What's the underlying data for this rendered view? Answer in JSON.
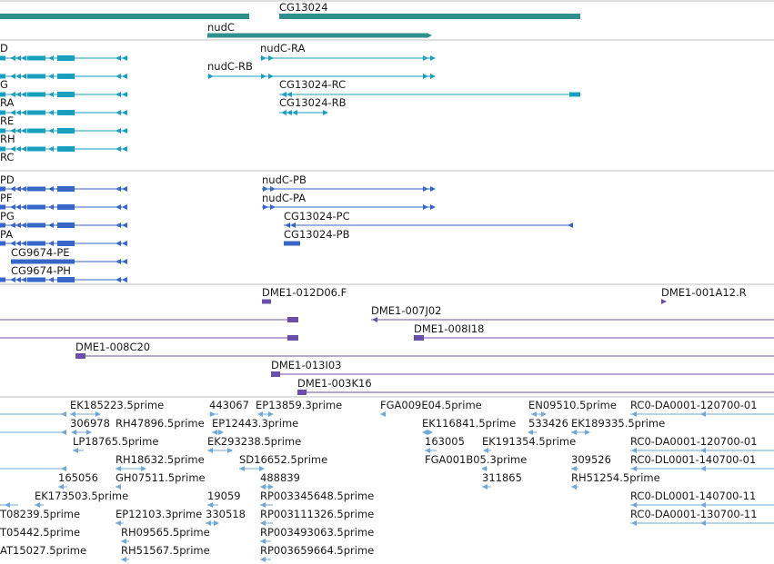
{
  "colors": {
    "gene": "#2f8f8c",
    "rna": "#1a9fc1",
    "protein": "#3566c8",
    "clone": "#6a4fa8",
    "est": "#6fa8d6",
    "divider": "#bfbfbf",
    "text": "#1a1a1a"
  },
  "gene_track": {
    "labels": [
      "CG13024",
      "nudC"
    ]
  },
  "rna_track": {
    "labels": [
      "D",
      "nudC-RA",
      "nudC-RB",
      "G",
      "CG13024-RC",
      "RA",
      "CG13024-RB",
      "RE",
      "RH",
      "RC"
    ]
  },
  "protein_track": {
    "labels": [
      "PD",
      "nudC-PB",
      "PF",
      "nudC-PA",
      "PG",
      "CG13024-PC",
      "PA",
      "CG13024-PB",
      "CG9674-PE",
      "CG9674-PH"
    ]
  },
  "clone_track": {
    "labels": [
      "DME1-012D06.F",
      "DME1-001A12.R",
      "DME1-007J02",
      "DME1-008I18",
      "DME1-008C20",
      "DME1-013I03",
      "DME1-003K16"
    ]
  },
  "est_track": {
    "labels": [
      "EK185223.5prime",
      "443067",
      "EP13859.3prime",
      "FGA009E04.5prime",
      "EN09510.5prime",
      "RC0-DA0001-120700-01",
      "306978",
      "RH47896.5prime",
      "EP12443.3prime",
      "EK116841.5prime",
      "533426",
      "EK189335.5prime",
      "LP18765.5prime",
      "EK293238.5prime",
      "163005",
      "EK191354.5prime",
      "RC0-DA0001-120700-01",
      "RH18632.5prime",
      "SD16652.5prime",
      "FGA001B05.3prime",
      "309526",
      "RC0-DL0001-140700-01",
      "165056",
      "GH07511.5prime",
      "488839",
      "311865",
      "RH51254.5prime",
      "EK173503.5prime",
      "19059",
      "RP003345648.5prime",
      "RC0-DL0001-140700-11",
      "T08239.5prime",
      "EP12103.3prime",
      "330518",
      "RP003111326.5prime",
      "RC0-DA0001-130700-11",
      "T05442.5prime",
      "RH09565.5prime",
      "RP003493063.5prime",
      "AT15027.5prime",
      "RH51567.5prime",
      "RP003659664.5prime"
    ]
  }
}
